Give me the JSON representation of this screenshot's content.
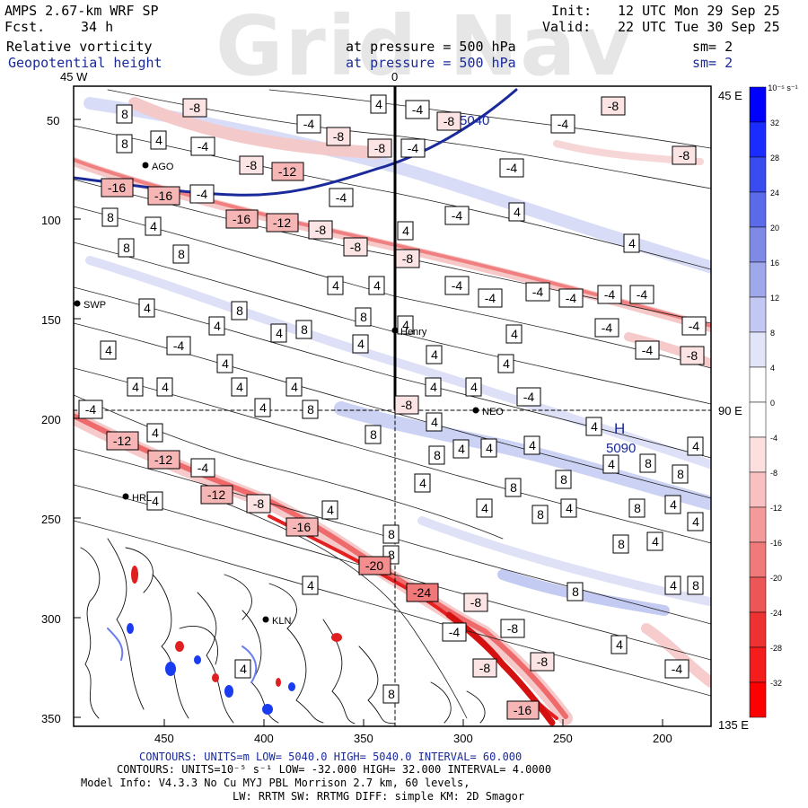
{
  "header": {
    "model_title": "AMPS 2.67-km WRF SP",
    "fcst_label": "Fcst.",
    "fcst_value": "34 h",
    "init_label": "Init:",
    "init_value": "12 UTC Mon 29 Sep 25",
    "valid_label": "Valid:",
    "valid_value": "22 UTC Tue 30 Sep 25",
    "field1_name": "Relative vorticity",
    "field1_pressure": "at pressure =  500 hPa",
    "field1_sm": "sm= 2",
    "field2_name": "Geopotential height",
    "field2_pressure": "at pressure =  500 hPa",
    "field2_sm": "sm= 2",
    "watermark": "Grid Nav"
  },
  "map": {
    "top_labels": [
      "45 W",
      "0"
    ],
    "right_labels": [
      "45 E",
      "90 E",
      "135 E"
    ],
    "y_ticks": [
      "50",
      "100",
      "150",
      "200",
      "250",
      "300",
      "350"
    ],
    "x_ticks": [
      "450",
      "400",
      "350",
      "300",
      "250",
      "200"
    ],
    "stations": [
      "AGO",
      "SWP",
      "Henry",
      "NEO",
      "HRL",
      "KLN"
    ],
    "height_labels": [
      "5040",
      "5090",
      "H"
    ],
    "vorticity_labels_positive": [
      "8",
      "4"
    ],
    "vorticity_labels_negative": [
      "-4",
      "-8",
      "-12",
      "-16",
      "-20",
      "-24"
    ],
    "colors": {
      "positive": "#1a3cf0",
      "negative": "#ff2020",
      "height_contour": "#1a2a9a"
    }
  },
  "colorbar": {
    "unit": "10⁻⁵ s⁻¹",
    "levels": [
      "32",
      "28",
      "24",
      "20",
      "16",
      "12",
      "8",
      "4",
      "0",
      "-4",
      "-8",
      "-12",
      "-16",
      "-20",
      "-24",
      "-28",
      "-32"
    ]
  },
  "footer": {
    "line1": "CONTOURS:  UNITS=m  LOW=  5040.0          HIGH=  5040.0         INTERVAL=   60.000",
    "line2": "CONTOURS:  UNITS=10⁻⁵ s⁻¹  LOW= -32.000        HIGH=  32.000       INTERVAL=   4.0000",
    "line3": "Model Info: V4.3.3    No Cu    MYJ PBL   Morrison          2.7 km,  60 levels,",
    "line4": "LW: RRTM SW: RRTMG   DIFF: simple KM: 2D Smagor"
  }
}
